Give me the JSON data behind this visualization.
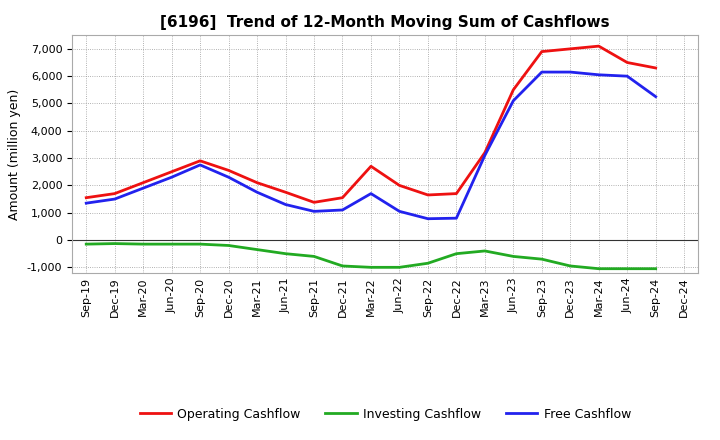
{
  "title": "[6196]  Trend of 12-Month Moving Sum of Cashflows",
  "ylabel": "Amount (million yen)",
  "x_labels": [
    "Sep-19",
    "Dec-19",
    "Mar-20",
    "Jun-20",
    "Sep-20",
    "Dec-20",
    "Mar-21",
    "Jun-21",
    "Sep-21",
    "Dec-21",
    "Mar-22",
    "Jun-22",
    "Sep-22",
    "Dec-22",
    "Mar-23",
    "Jun-23",
    "Sep-23",
    "Dec-23",
    "Mar-24",
    "Jun-24",
    "Sep-24",
    "Dec-24"
  ],
  "operating": [
    1550,
    1700,
    2100,
    2500,
    2900,
    2550,
    2100,
    1750,
    1380,
    1550,
    2700,
    2000,
    1650,
    1700,
    3200,
    5500,
    6900,
    7000,
    7100,
    6500,
    6300,
    null
  ],
  "investing": [
    -150,
    -130,
    -150,
    -150,
    -150,
    -200,
    -350,
    -500,
    -600,
    -950,
    -1000,
    -1000,
    -850,
    -500,
    -400,
    -600,
    -700,
    -950,
    -1050,
    -1050,
    -1050,
    null
  ],
  "free": [
    1350,
    1500,
    1900,
    2300,
    2750,
    2300,
    1750,
    1300,
    1050,
    1100,
    1700,
    1050,
    780,
    800,
    3100,
    5100,
    6150,
    6150,
    6050,
    6000,
    5250,
    null
  ],
  "operating_color": "#ee1111",
  "investing_color": "#22aa22",
  "free_color": "#2222ee",
  "ylim": [
    -1200,
    7500
  ],
  "yticks": [
    -1000,
    0,
    1000,
    2000,
    3000,
    4000,
    5000,
    6000,
    7000
  ],
  "bg_color": "#ffffff",
  "plot_bg_color": "#ffffff",
  "grid_color": "#999999",
  "linewidth": 2.0,
  "title_fontsize": 11,
  "legend_fontsize": 9,
  "tick_fontsize": 8,
  "ylabel_fontsize": 9
}
